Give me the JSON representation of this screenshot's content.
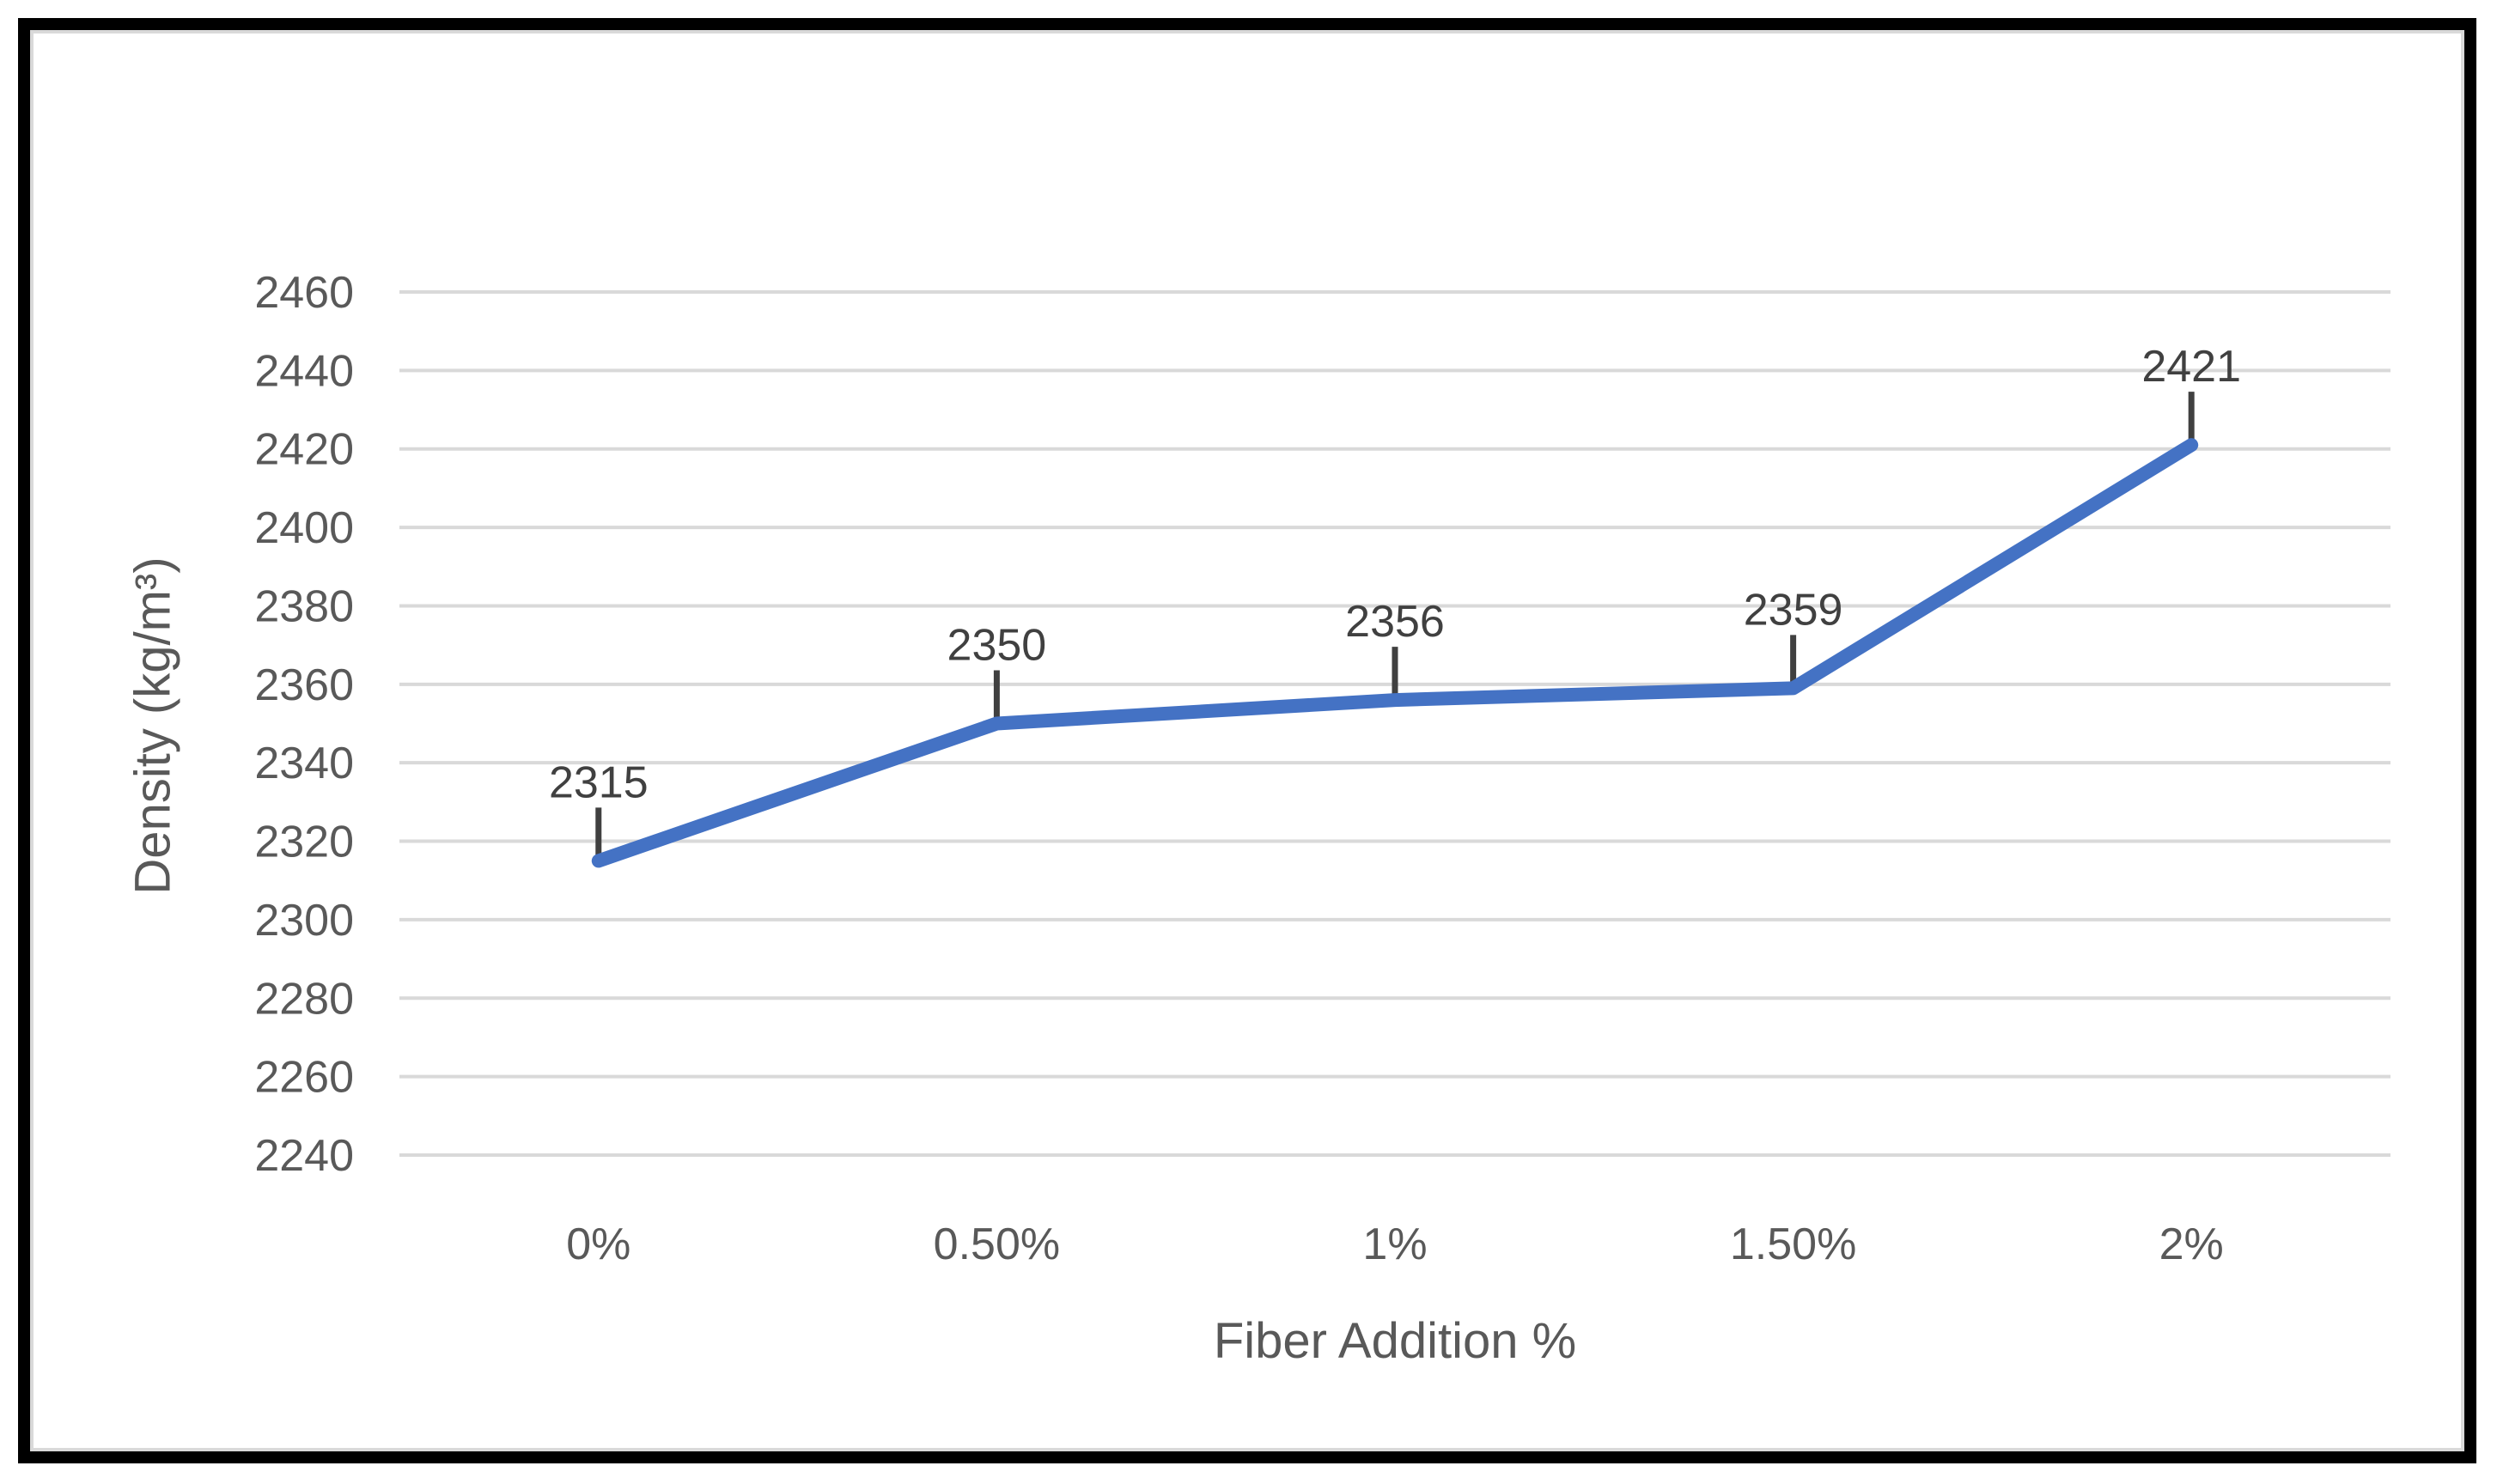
{
  "chart_data": {
    "type": "line",
    "title": "",
    "categories": [
      "0%",
      "0.50%",
      "1%",
      "1.50%",
      "2%"
    ],
    "values": [
      2315,
      2350,
      2356,
      2359,
      2421
    ],
    "data_labels": [
      "2315",
      "2350",
      "2356",
      "2359",
      "2421"
    ],
    "xlabel": "Fiber Addition %",
    "ylabel": "Density (kg/m³)",
    "ylim": [
      2240,
      2460
    ],
    "y_tick_step": 20,
    "y_tick_labels": [
      "2460",
      "2440",
      "2420",
      "2400",
      "2380",
      "2360",
      "2340",
      "2320",
      "2300",
      "2280",
      "2260",
      "2240"
    ],
    "grid": "horizontal-only",
    "legend": "none",
    "markers": "none",
    "colors": {
      "line": "#4472C4",
      "gridline": "#D9D9D9",
      "tick_label_text": "#595959",
      "axis_title_text": "#595959",
      "data_label_text": "#404040",
      "leader_line": "#404040",
      "outer_frame": "#000000",
      "chart_area_border": "#D9D9D9",
      "background": "#FFFFFF"
    }
  }
}
